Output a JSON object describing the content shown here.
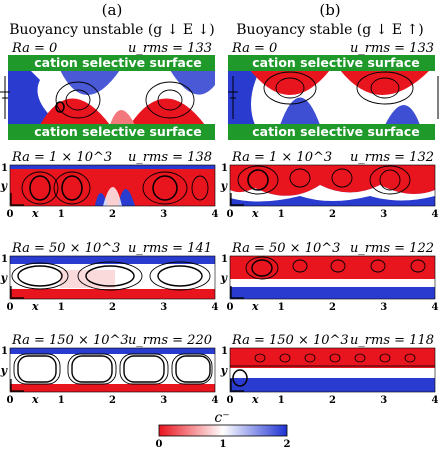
{
  "columns": [
    {
      "id": "a",
      "tag": "(a)",
      "title": "Buoyancy unstable (g ↓ E ↓)"
    },
    {
      "id": "b",
      "tag": "(b)",
      "title": "Buoyancy stable (g ↓ E ↑)"
    }
  ],
  "surface_label": "cation selective surface",
  "axes": {
    "x_label": "x",
    "y_label": "y",
    "x_ticks": [
      "0",
      "1",
      "2",
      "3",
      "4"
    ],
    "y_ticks": [
      "0",
      "1"
    ]
  },
  "panels": [
    {
      "col": "a",
      "row": 0,
      "ra": "Ra = 0",
      "urms": "u_rms = 133"
    },
    {
      "col": "b",
      "row": 0,
      "ra": "Ra = 0",
      "urms": "u_rms = 133"
    },
    {
      "col": "a",
      "row": 1,
      "ra": "Ra = 1 × 10^3",
      "urms": "u_rms = 138"
    },
    {
      "col": "b",
      "row": 1,
      "ra": "Ra = 1 × 10^3",
      "urms": "u_rms = 132"
    },
    {
      "col": "a",
      "row": 2,
      "ra": "Ra = 50 × 10^3",
      "urms": "u_rms = 141"
    },
    {
      "col": "b",
      "row": 2,
      "ra": "Ra = 50 × 10^3",
      "urms": "u_rms = 122"
    },
    {
      "col": "a",
      "row": 3,
      "ra": "Ra = 150 × 10^3",
      "urms": "u_rms = 220"
    },
    {
      "col": "b",
      "row": 3,
      "ra": "Ra = 150 × 10^3",
      "urms": "u_rms = 118"
    }
  ],
  "colorbar": {
    "label": "c⁻",
    "ticks": [
      "0",
      "1",
      "2"
    ],
    "min_color": "#e8141e",
    "mid_color": "#ffffff",
    "max_color": "#1e32d2"
  },
  "colors": {
    "surface_green": "#1f9a2a",
    "surface_text": "#ffffff",
    "low": "#e8141e",
    "high": "#1e32d2"
  }
}
